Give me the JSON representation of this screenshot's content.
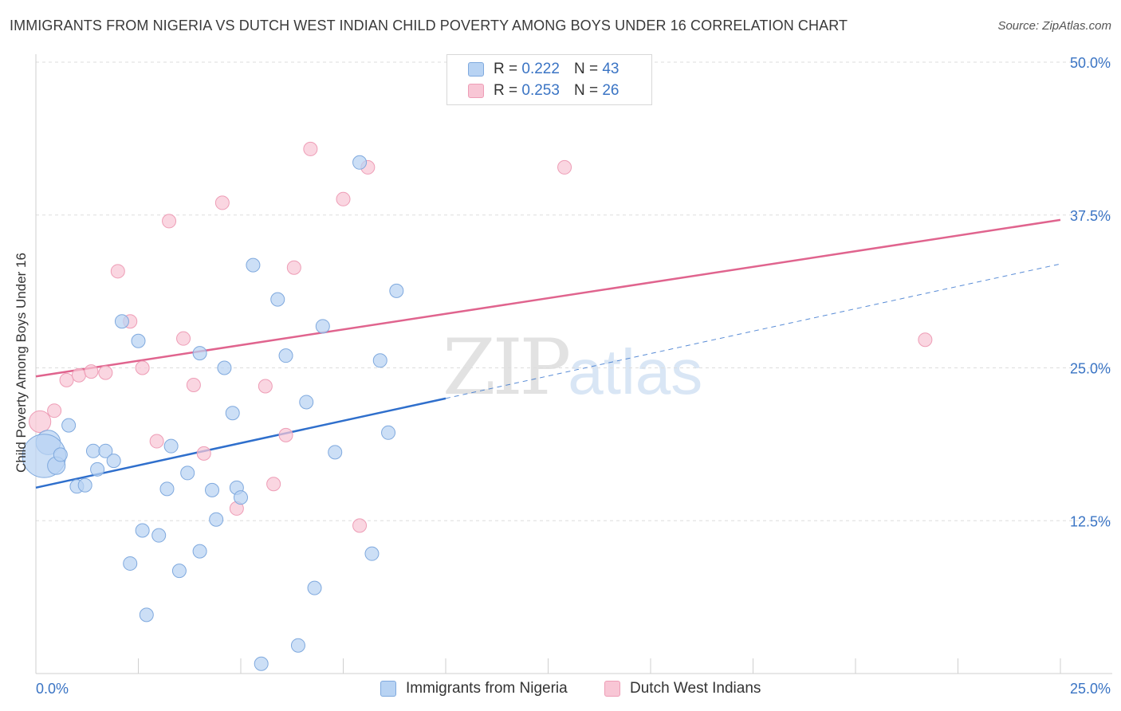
{
  "header": {
    "title": "IMMIGRANTS FROM NIGERIA VS DUTCH WEST INDIAN CHILD POVERTY AMONG BOYS UNDER 16 CORRELATION CHART",
    "source": "Source: ZipAtlas.com"
  },
  "watermark": {
    "zip": "ZIP",
    "atlas": "atlas"
  },
  "legend": {
    "nigeria": {
      "r_label": "R =",
      "r_value": "0.222",
      "n_label": "N =",
      "n_value": "43"
    },
    "dutch": {
      "r_label": "R =",
      "r_value": "0.253",
      "n_label": "N =",
      "n_value": "26"
    }
  },
  "bottom_legend": {
    "nigeria": "Immigrants from Nigeria",
    "dutch": "Dutch West Indians"
  },
  "colors": {
    "nigeria_fill": "#b8d3f3",
    "nigeria_stroke": "#7fa9de",
    "nigeria_line": "#2f6fcc",
    "dutch_fill": "#f8c6d5",
    "dutch_stroke": "#ee9db6",
    "dutch_line": "#e0648e",
    "tick_label": "#3a74c4",
    "grid": "#dddddd"
  },
  "chart_data": {
    "type": "scatter",
    "title": "IMMIGRANTS FROM NIGERIA VS DUTCH WEST INDIAN CHILD POVERTY AMONG BOYS UNDER 16 CORRELATION CHART",
    "xlabel": "",
    "ylabel": "Child Poverty Among Boys Under 16",
    "xlim": [
      0,
      25
    ],
    "ylim": [
      0,
      50
    ],
    "x_tick_labels": [
      "0.0%",
      "25.0%"
    ],
    "y_ticks": [
      12.5,
      25.0,
      37.5,
      50.0
    ],
    "y_tick_labels": [
      "12.5%",
      "25.0%",
      "37.5%",
      "50.0%"
    ],
    "grid": "horizontal dashed",
    "legend_position": "top-center",
    "series": [
      {
        "name": "Immigrants from Nigeria",
        "r": 0.222,
        "n": 43,
        "trend": {
          "x": [
            0,
            10
          ],
          "y": [
            15.2,
            22.5
          ],
          "extended_to": [
            25,
            33.5
          ]
        },
        "points": [
          [
            0.3,
            18.9,
            1.8
          ],
          [
            0.2,
            17.8,
            3.2
          ],
          [
            0.5,
            17.0,
            1.3
          ],
          [
            0.6,
            17.9,
            1
          ],
          [
            0.8,
            20.3,
            1
          ],
          [
            1.0,
            15.3,
            1
          ],
          [
            1.2,
            15.4,
            1
          ],
          [
            1.4,
            18.2,
            1
          ],
          [
            1.5,
            16.7,
            1
          ],
          [
            1.7,
            18.2,
            1
          ],
          [
            1.9,
            17.4,
            1
          ],
          [
            2.1,
            28.8,
            1
          ],
          [
            2.3,
            9.0,
            1
          ],
          [
            2.5,
            27.2,
            1
          ],
          [
            2.6,
            11.7,
            1
          ],
          [
            2.7,
            4.8,
            1
          ],
          [
            3.0,
            11.3,
            1
          ],
          [
            3.2,
            15.1,
            1
          ],
          [
            3.3,
            18.6,
            1
          ],
          [
            3.5,
            8.4,
            1
          ],
          [
            3.7,
            16.4,
            1
          ],
          [
            4.0,
            10.0,
            1
          ],
          [
            4.0,
            26.2,
            1
          ],
          [
            4.3,
            15.0,
            1
          ],
          [
            4.4,
            12.6,
            1
          ],
          [
            4.6,
            25.0,
            1
          ],
          [
            4.8,
            21.3,
            1
          ],
          [
            4.9,
            15.2,
            1
          ],
          [
            5.0,
            14.4,
            1
          ],
          [
            5.3,
            33.4,
            1
          ],
          [
            5.5,
            0.8,
            1
          ],
          [
            5.9,
            30.6,
            1
          ],
          [
            6.1,
            26.0,
            1
          ],
          [
            6.4,
            2.3,
            1
          ],
          [
            6.6,
            22.2,
            1
          ],
          [
            6.8,
            7.0,
            1
          ],
          [
            7.0,
            28.4,
            1
          ],
          [
            7.3,
            18.1,
            1
          ],
          [
            7.9,
            41.8,
            1
          ],
          [
            8.2,
            9.8,
            1
          ],
          [
            8.4,
            25.6,
            1
          ],
          [
            8.6,
            19.7,
            1
          ],
          [
            8.8,
            31.3,
            1
          ]
        ]
      },
      {
        "name": "Dutch West Indians",
        "r": 0.253,
        "n": 26,
        "trend": {
          "x": [
            0,
            25
          ],
          "y": [
            24.3,
            37.1
          ]
        },
        "points": [
          [
            0.1,
            20.6,
            1.6
          ],
          [
            0.45,
            21.5,
            1
          ],
          [
            0.75,
            24.0,
            1
          ],
          [
            1.05,
            24.4,
            1
          ],
          [
            1.35,
            24.7,
            1
          ],
          [
            1.7,
            24.6,
            1
          ],
          [
            2.0,
            32.9,
            1
          ],
          [
            2.3,
            28.8,
            1
          ],
          [
            2.6,
            25.0,
            1
          ],
          [
            2.95,
            19.0,
            1
          ],
          [
            3.25,
            37.0,
            1
          ],
          [
            3.6,
            27.4,
            1
          ],
          [
            3.85,
            23.6,
            1
          ],
          [
            4.1,
            18.0,
            1
          ],
          [
            4.55,
            38.5,
            1
          ],
          [
            4.9,
            13.5,
            1
          ],
          [
            5.6,
            23.5,
            1
          ],
          [
            5.8,
            15.5,
            1
          ],
          [
            6.1,
            19.5,
            1
          ],
          [
            6.3,
            33.2,
            1
          ],
          [
            6.7,
            42.9,
            1
          ],
          [
            7.5,
            38.8,
            1
          ],
          [
            7.9,
            12.1,
            1
          ],
          [
            8.1,
            41.4,
            1
          ],
          [
            12.9,
            41.4,
            1
          ],
          [
            21.7,
            27.3,
            1
          ]
        ]
      }
    ]
  }
}
